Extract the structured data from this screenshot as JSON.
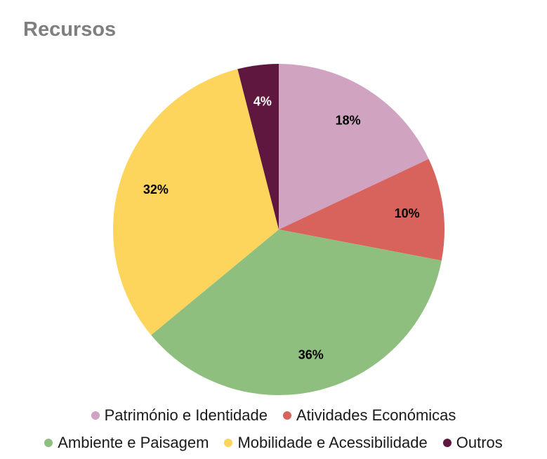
{
  "chart_data": {
    "type": "pie",
    "title": "Recursos",
    "labels": [
      "Património e Identidade",
      "Atividades Económicas",
      "Ambiente e Paisagem",
      "Mobilidade e Acessibilidade",
      "Outros"
    ],
    "values": [
      18,
      10,
      36,
      32,
      4
    ],
    "value_labels": [
      "18%",
      "10%",
      "36%",
      "32%",
      "4%"
    ],
    "colors": [
      "#d0a3c1",
      "#d8625c",
      "#8fbf7f",
      "#fdd55c",
      "#5f1740"
    ],
    "value_label_colors": [
      "#000000",
      "#000000",
      "#000000",
      "#000000",
      "#ffffff"
    ],
    "start_angle_deg": 0,
    "direction": "clockwise",
    "legend_position": "bottom",
    "legend_rows": [
      [
        0,
        1
      ],
      [
        2,
        3,
        4
      ]
    ],
    "title_color": "#7f7f7f",
    "background": "#ffffff"
  }
}
